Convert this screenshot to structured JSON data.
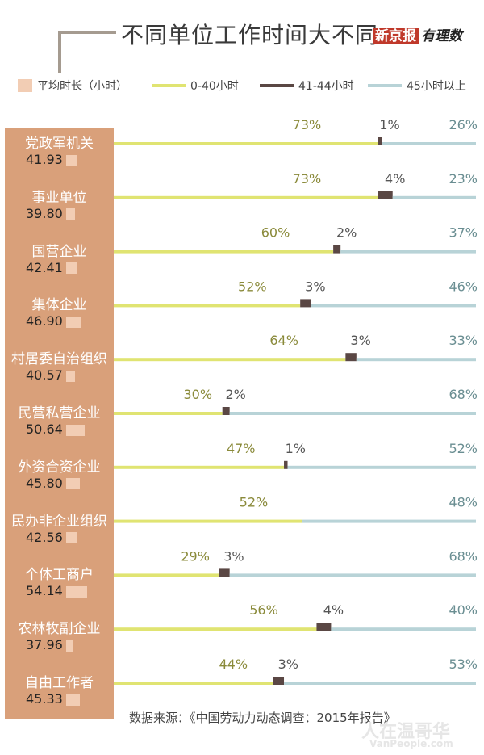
{
  "header": {
    "title": "不同单位工作时间大不同",
    "brand_main": "新京报",
    "brand_sub": "有理数"
  },
  "legend": {
    "avg": "平均时长（小时）",
    "s1": "0-40小时",
    "s2": "41-44小时",
    "s3": "45小时以上"
  },
  "colors": {
    "s1": "#e0e472",
    "s2": "#5a4744",
    "s3": "#b8d3d7",
    "sidebar": "#d9a07a",
    "avg_bar": "#f2cdb4",
    "pct_s1": "#8a8a3a"
  },
  "chart_data": {
    "type": "bar",
    "stacked": true,
    "orientation": "horizontal",
    "title": "不同单位工作时间大不同",
    "categories": [
      "党政军机关",
      "事业单位",
      "国营企业",
      "集体企业",
      "村居委自治组织",
      "民营私营企业",
      "外资合资企业",
      "民办非企业组织",
      "个体工商户",
      "农林牧副企业",
      "自由工作者"
    ],
    "avg_hours": [
      "41.93",
      "39.80",
      "42.41",
      "46.90",
      "40.57",
      "50.64",
      "45.80",
      "42.56",
      "54.14",
      "37.96",
      "45.33"
    ],
    "series": [
      {
        "name": "0-40小时",
        "values": [
          73,
          73,
          60,
          52,
          64,
          30,
          47,
          52,
          29,
          56,
          44
        ]
      },
      {
        "name": "41-44小时",
        "values": [
          1,
          4,
          2,
          3,
          3,
          2,
          1,
          null,
          3,
          4,
          3
        ]
      },
      {
        "name": "45小时以上",
        "values": [
          26,
          23,
          37,
          46,
          33,
          68,
          52,
          48,
          68,
          40,
          53
        ]
      }
    ],
    "unit": "%"
  },
  "footer": {
    "source": "数据来源：《中国劳动力动态调查：2015年报告》",
    "watermark": "人在温哥华",
    "watermark_url": "VanPeople.com"
  }
}
